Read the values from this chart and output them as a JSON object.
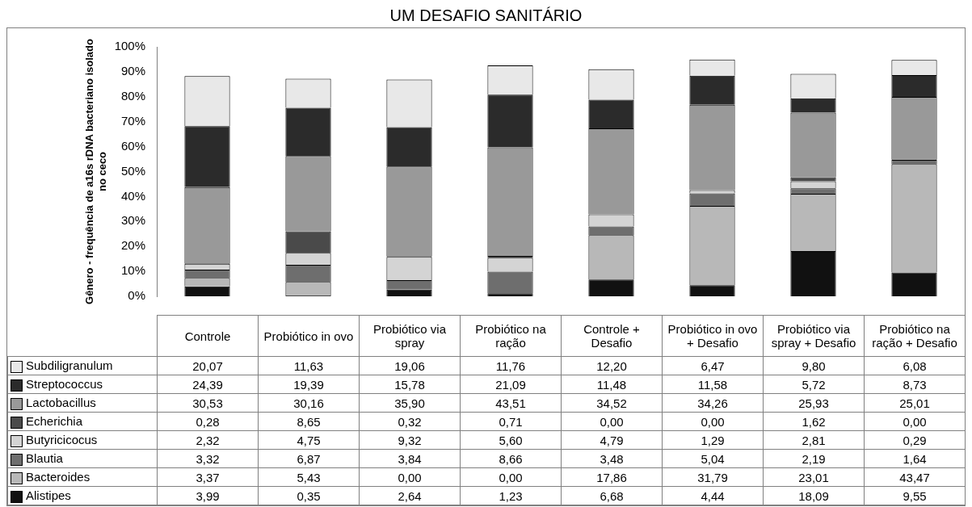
{
  "chart_data": {
    "type": "bar",
    "stacked": true,
    "title": "UM DESAFIO SANITÁRIO",
    "ylabel": "Gênero - frequência de a16s rDNA bacteriano isolado no ceco",
    "categories": [
      "Controle",
      "Probiótico in ovo",
      "Probiótico via spray",
      "Probiótico na ração",
      "Controle + Desafio",
      "Probiótico in ovo + Desafio",
      "Probiótico via spray + Desafio",
      "Probiótico na ração + Desafio"
    ],
    "ylim": [
      0,
      100
    ],
    "yticks": [
      {
        "value": 0,
        "label": "0%"
      },
      {
        "value": 10,
        "label": "10%"
      },
      {
        "value": 20,
        "label": "20%"
      },
      {
        "value": 30,
        "label": "30%"
      },
      {
        "value": 40,
        "label": "40%"
      },
      {
        "value": 50,
        "label": "50%"
      },
      {
        "value": 60,
        "label": "60%"
      },
      {
        "value": 70,
        "label": "70%"
      },
      {
        "value": 80,
        "label": "80%"
      },
      {
        "value": 90,
        "label": "90%"
      },
      {
        "value": 100,
        "label": "100%"
      }
    ],
    "grid": false,
    "legend": "left",
    "series": [
      {
        "name": "Alistipes",
        "color": "#111111",
        "values": [
          3.99,
          0.35,
          2.64,
          1.23,
          6.68,
          4.44,
          18.09,
          9.55
        ],
        "value_labels": [
          "3,99",
          "0,35",
          "2,64",
          "1,23",
          "6,68",
          "4,44",
          "18,09",
          "9,55"
        ]
      },
      {
        "name": "Bacteroides",
        "color": "#b8b8b8",
        "values": [
          3.37,
          5.43,
          0.0,
          0.0,
          17.86,
          31.79,
          23.01,
          43.47
        ],
        "value_labels": [
          "3,37",
          "5,43",
          "0,00",
          "0,00",
          "17,86",
          "31,79",
          "23,01",
          "43,47"
        ]
      },
      {
        "name": "Blautia",
        "color": "#6e6e6e",
        "values": [
          3.32,
          6.87,
          3.84,
          8.66,
          3.48,
          5.04,
          2.19,
          1.64
        ],
        "value_labels": [
          "3,32",
          "6,87",
          "3,84",
          "8,66",
          "3,48",
          "5,04",
          "2,19",
          "1,64"
        ]
      },
      {
        "name": "Butyricicocus",
        "color": "#d4d4d4",
        "values": [
          2.32,
          4.75,
          9.32,
          5.6,
          4.79,
          1.29,
          2.81,
          0.29
        ],
        "value_labels": [
          "2,32",
          "4,75",
          "9,32",
          "5,60",
          "4,79",
          "1,29",
          "2,81",
          "0,29"
        ]
      },
      {
        "name": "Echerichia",
        "color": "#4a4a4a",
        "values": [
          0.28,
          8.65,
          0.32,
          0.71,
          0.0,
          0.0,
          1.62,
          0.0
        ],
        "value_labels": [
          "0,28",
          "8,65",
          "0,32",
          "0,71",
          "0,00",
          "0,00",
          "1,62",
          "0,00"
        ]
      },
      {
        "name": "Lactobacillus",
        "color": "#999999",
        "values": [
          30.53,
          30.16,
          35.9,
          43.51,
          34.52,
          34.26,
          25.93,
          25.01
        ],
        "value_labels": [
          "30,53",
          "30,16",
          "35,90",
          "43,51",
          "34,52",
          "34,26",
          "25,93",
          "25,01"
        ]
      },
      {
        "name": "Streptococcus",
        "color": "#2b2b2b",
        "values": [
          24.39,
          19.39,
          15.78,
          21.09,
          11.48,
          11.58,
          5.72,
          8.73
        ],
        "value_labels": [
          "24,39",
          "19,39",
          "15,78",
          "21,09",
          "11,48",
          "11,58",
          "5,72",
          "8,73"
        ]
      },
      {
        "name": "Subdiligranulum",
        "color": "#e8e8e8",
        "values": [
          20.07,
          11.63,
          19.06,
          11.76,
          12.2,
          6.47,
          9.8,
          6.08
        ],
        "value_labels": [
          "20,07",
          "11,63",
          "19,06",
          "11,76",
          "12,20",
          "6,47",
          "9,80",
          "6,08"
        ]
      }
    ]
  }
}
